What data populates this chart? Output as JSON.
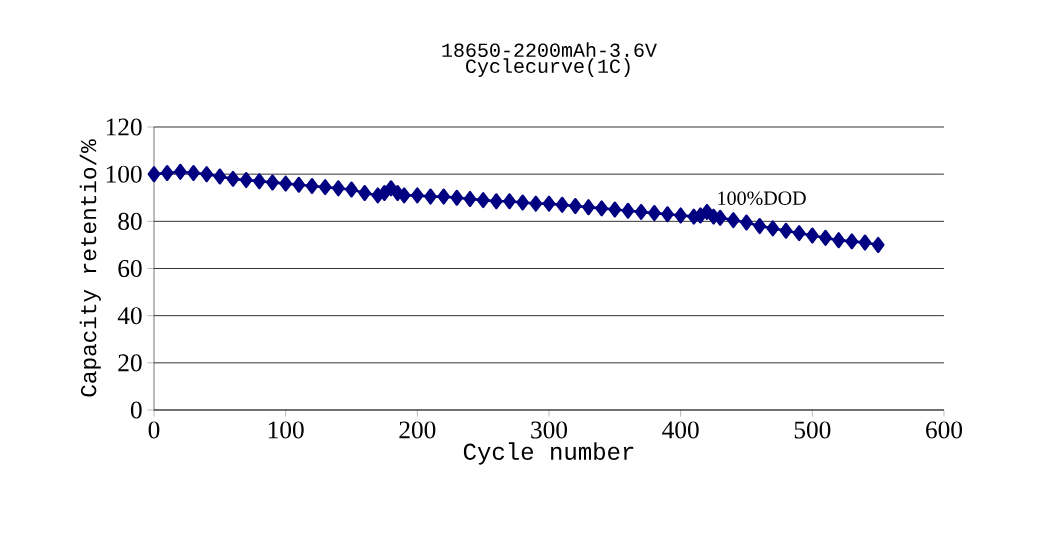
{
  "chart_data": {
    "type": "line",
    "title": "18650-2200mAh-3.6V Cyclecurve(1C)",
    "xlabel": "Cycle number",
    "ylabel": "Capacity retentio/%",
    "x": [
      0,
      10,
      20,
      30,
      40,
      50,
      60,
      70,
      80,
      90,
      100,
      110,
      120,
      130,
      140,
      150,
      160,
      170,
      175,
      180,
      185,
      190,
      200,
      210,
      220,
      230,
      240,
      250,
      260,
      270,
      280,
      290,
      300,
      310,
      320,
      330,
      340,
      350,
      360,
      370,
      380,
      390,
      400,
      410,
      415,
      420,
      425,
      430,
      440,
      450,
      460,
      470,
      480,
      490,
      500,
      510,
      520,
      530,
      540,
      550
    ],
    "series": [
      {
        "color": "#000080",
        "values": [
          100,
          100.5,
          101,
          100.5,
          100,
          99,
          98,
          97.5,
          97,
          96.5,
          96,
          95.5,
          95,
          94.5,
          94,
          93.5,
          92,
          91,
          92,
          94,
          92,
          91,
          91,
          90.5,
          90.5,
          90,
          89.5,
          89,
          88.5,
          88.5,
          88,
          87.5,
          87.5,
          87,
          86.5,
          86,
          85.5,
          85,
          84.5,
          84,
          83.5,
          83,
          82.5,
          82,
          82.5,
          84,
          82,
          81.5,
          80.5,
          79.5,
          78,
          77,
          76,
          75,
          74,
          73,
          72,
          71.5,
          71,
          70
        ]
      }
    ],
    "xlim": [
      0,
      600
    ],
    "xticks": [
      0,
      100,
      200,
      300,
      400,
      500,
      600
    ],
    "ylim": [
      0,
      120
    ],
    "yticks": [
      0,
      20,
      40,
      60,
      80,
      100,
      120
    ],
    "grid": "y",
    "marker": "diamond",
    "line_style": "solid",
    "annotations": [
      {
        "text": "100%DOD",
        "x": 420,
        "y": 84
      }
    ]
  }
}
